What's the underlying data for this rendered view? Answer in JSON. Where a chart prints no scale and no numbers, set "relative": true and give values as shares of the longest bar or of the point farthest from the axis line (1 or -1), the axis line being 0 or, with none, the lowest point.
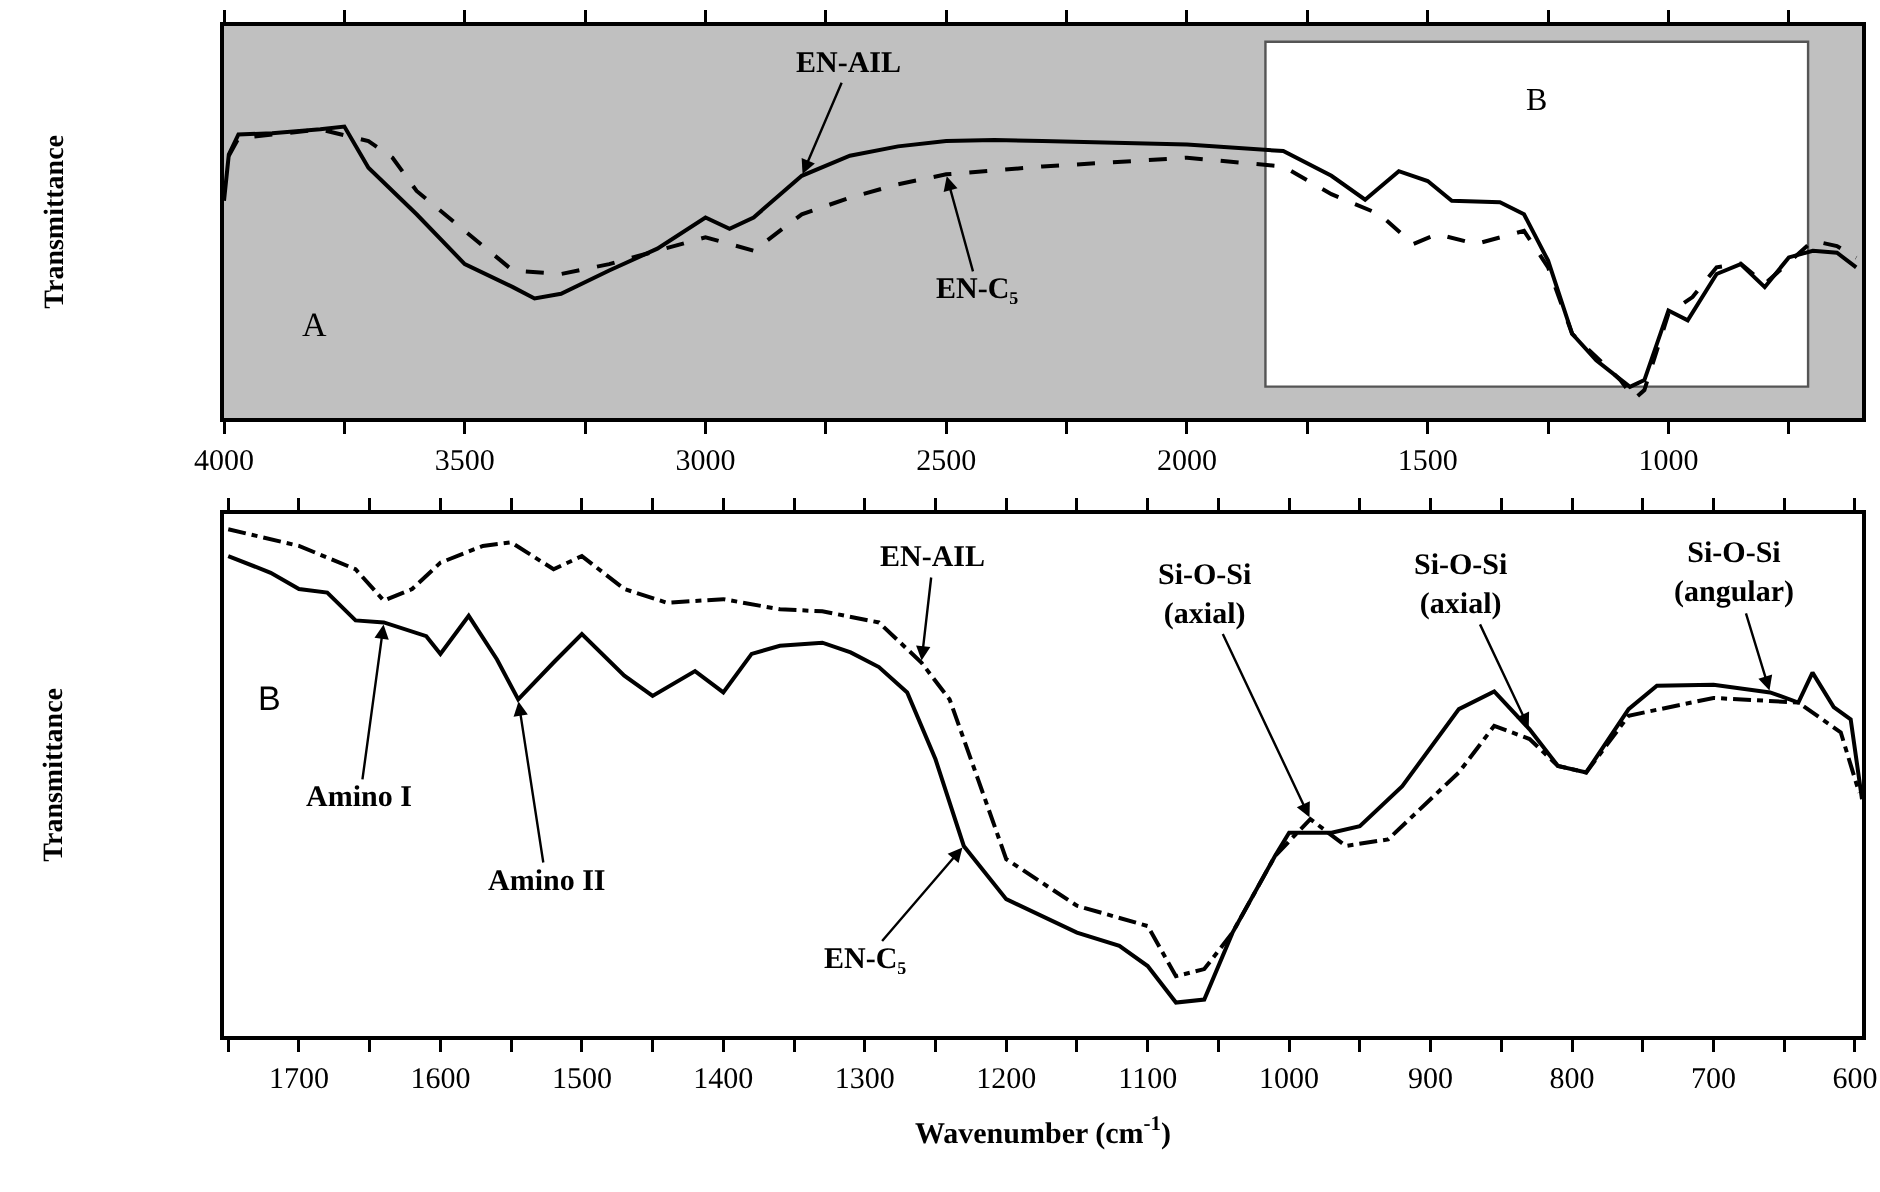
{
  "chart_data": [
    {
      "type": "line",
      "relative": true,
      "ylabel": "Transmittance",
      "xlim": [
        4000,
        598
      ],
      "xticks": [
        4000,
        {
          "value": 3750,
          "label": null
        },
        3500,
        {
          "value": 3250,
          "label": null
        },
        3000,
        {
          "value": 2750,
          "label": null
        },
        2500,
        {
          "value": 2250,
          "label": null
        },
        2000,
        {
          "value": 1750,
          "label": null
        },
        1500,
        {
          "value": 1250,
          "label": null
        },
        1000,
        {
          "value": 750,
          "label": null
        }
      ],
      "bands": [
        {
          "axis": "x",
          "from": 1837,
          "to": 710,
          "label": "B",
          "color": "#ffffff"
        }
      ],
      "series": [
        {
          "color": "#000000",
          "line_style": "solid",
          "x": [
            4000,
            3990,
            3970,
            3900,
            3800,
            3750,
            3700,
            3600,
            3500,
            3400,
            3355,
            3300,
            3200,
            3100,
            3000,
            2950,
            2900,
            2800,
            2700,
            2600,
            2500,
            2400,
            2300,
            2000,
            1800,
            1700,
            1630,
            1560,
            1500,
            1450,
            1350,
            1300,
            1250,
            1200,
            1150,
            1080,
            1050,
            1000,
            960,
            900,
            850,
            800,
            750,
            700,
            650,
            610
          ],
          "values": [
            0.745,
            0.904,
            0.973,
            0.977,
            0.991,
            1.0,
            0.859,
            0.699,
            0.528,
            0.449,
            0.41,
            0.426,
            0.506,
            0.581,
            0.688,
            0.649,
            0.688,
            0.831,
            0.9,
            0.932,
            0.95,
            0.954,
            0.95,
            0.938,
            0.916,
            0.831,
            0.749,
            0.847,
            0.813,
            0.745,
            0.74,
            0.699,
            0.54,
            0.289,
            0.198,
            0.107,
            0.13,
            0.369,
            0.335,
            0.494,
            0.528,
            0.449,
            0.551,
            0.574,
            0.567,
            0.517
          ]
        },
        {
          "color": "#000000",
          "line_style": "dashed",
          "x": [
            3990,
            3970,
            3800,
            3700,
            3650,
            3600,
            3500,
            3400,
            3300,
            3200,
            3100,
            3000,
            2900,
            2800,
            2700,
            2600,
            2500,
            2300,
            2000,
            1800,
            1700,
            1600,
            1530,
            1480,
            1400,
            1300,
            1250,
            1200,
            1100,
            1070,
            1050,
            1000,
            950,
            900,
            850,
            800,
            700,
            650,
            610
          ],
          "values": [
            0.9,
            0.96,
            0.99,
            0.95,
            0.893,
            0.779,
            0.642,
            0.506,
            0.494,
            0.528,
            0.574,
            0.62,
            0.574,
            0.699,
            0.756,
            0.802,
            0.836,
            0.863,
            0.893,
            0.863,
            0.768,
            0.699,
            0.597,
            0.631,
            0.597,
            0.642,
            0.517,
            0.289,
            0.13,
            0.066,
            0.096,
            0.358,
            0.415,
            0.517,
            0.53,
            0.46,
            0.608,
            0.59,
            0.55
          ]
        }
      ],
      "annotations": [
        {
          "text": "EN-AIL",
          "x": 2800,
          "y": 0.831
        },
        {
          "text": "EN-C₅",
          "x": 2500,
          "y": 0.836
        },
        "A"
      ]
    },
    {
      "type": "line",
      "relative": true,
      "ylabel": "Transmittance",
      "xlabel": "Wavenumber (cm$^{-1}$)",
      "xlim": [
        1753,
        595
      ],
      "xticks": [
        {
          "value": 1750,
          "label": null
        },
        1700,
        {
          "value": 1650,
          "label": null
        },
        1600,
        {
          "value": 1550,
          "label": null
        },
        1500,
        {
          "value": 1450,
          "label": null
        },
        1400,
        {
          "value": 1350,
          "label": null
        },
        1300,
        {
          "value": 1250,
          "label": null
        },
        1200,
        {
          "value": 1150,
          "label": null
        },
        1100,
        {
          "value": 1050,
          "label": null
        },
        1000,
        {
          "value": 950,
          "label": null
        },
        900,
        {
          "value": 850,
          "label": null
        },
        800,
        {
          "value": 750,
          "label": null
        },
        700,
        {
          "value": 650,
          "label": null
        },
        600
      ],
      "series": [
        {
          "color": "#000000",
          "line_style": "solid",
          "x": [
            1750,
            1720,
            1700,
            1680,
            1660,
            1640,
            1610,
            1600,
            1580,
            1560,
            1545,
            1520,
            1500,
            1470,
            1450,
            1420,
            1400,
            1380,
            1360,
            1330,
            1310,
            1290,
            1270,
            1250,
            1230,
            1200,
            1150,
            1120,
            1100,
            1080,
            1060,
            1040,
            1010,
            1000,
            970,
            950,
            920,
            880,
            855,
            830,
            810,
            790,
            760,
            740,
            700,
            660,
            640,
            630,
            615,
            603,
            595
          ],
          "values": [
            0.947,
            0.914,
            0.882,
            0.875,
            0.82,
            0.816,
            0.789,
            0.754,
            0.829,
            0.743,
            0.664,
            0.737,
            0.793,
            0.711,
            0.671,
            0.72,
            0.678,
            0.754,
            0.77,
            0.776,
            0.757,
            0.728,
            0.678,
            0.546,
            0.375,
            0.27,
            0.204,
            0.178,
            0.138,
            0.066,
            0.072,
            0.204,
            0.355,
            0.401,
            0.401,
            0.414,
            0.493,
            0.645,
            0.68,
            0.605,
            0.533,
            0.52,
            0.645,
            0.691,
            0.693,
            0.678,
            0.658,
            0.717,
            0.649,
            0.625,
            0.467
          ]
        },
        {
          "color": "#000000",
          "line_style": "dashdot",
          "x": [
            1750,
            1700,
            1660,
            1640,
            1620,
            1600,
            1570,
            1550,
            1520,
            1500,
            1470,
            1440,
            1400,
            1360,
            1330,
            1290,
            1260,
            1240,
            1220,
            1200,
            1150,
            1100,
            1080,
            1060,
            1040,
            1010,
            985,
            960,
            930,
            880,
            855,
            830,
            810,
            790,
            760,
            700,
            640,
            610,
            597
          ],
          "values": [
            1.0,
            0.967,
            0.921,
            0.859,
            0.882,
            0.934,
            0.967,
            0.974,
            0.921,
            0.947,
            0.882,
            0.855,
            0.862,
            0.842,
            0.838,
            0.816,
            0.737,
            0.664,
            0.507,
            0.349,
            0.257,
            0.217,
            0.118,
            0.132,
            0.204,
            0.355,
            0.428,
            0.375,
            0.388,
            0.52,
            0.612,
            0.586,
            0.533,
            0.52,
            0.632,
            0.667,
            0.658,
            0.599,
            0.48
          ]
        }
      ],
      "annotations": [
        "B",
        {
          "text": "EN-AIL",
          "x": 1260,
          "y": 0.737
        },
        {
          "text": "EN-C₅",
          "x": 1230,
          "y": 0.375
        },
        {
          "text": "Amino I",
          "x": 1640,
          "y": 0.816
        },
        {
          "text": "Amino II",
          "x": 1545,
          "y": 0.664
        },
        {
          "text": "Si-O-Si\n(axial)",
          "x": 985,
          "y": 0.428
        },
        {
          "text": "Si-O-Si\n(axial)",
          "x": 830,
          "y": 0.605
        },
        {
          "text": "Si-O-Si\n(angular)",
          "x": 660,
          "y": 0.678
        }
      ]
    }
  ]
}
